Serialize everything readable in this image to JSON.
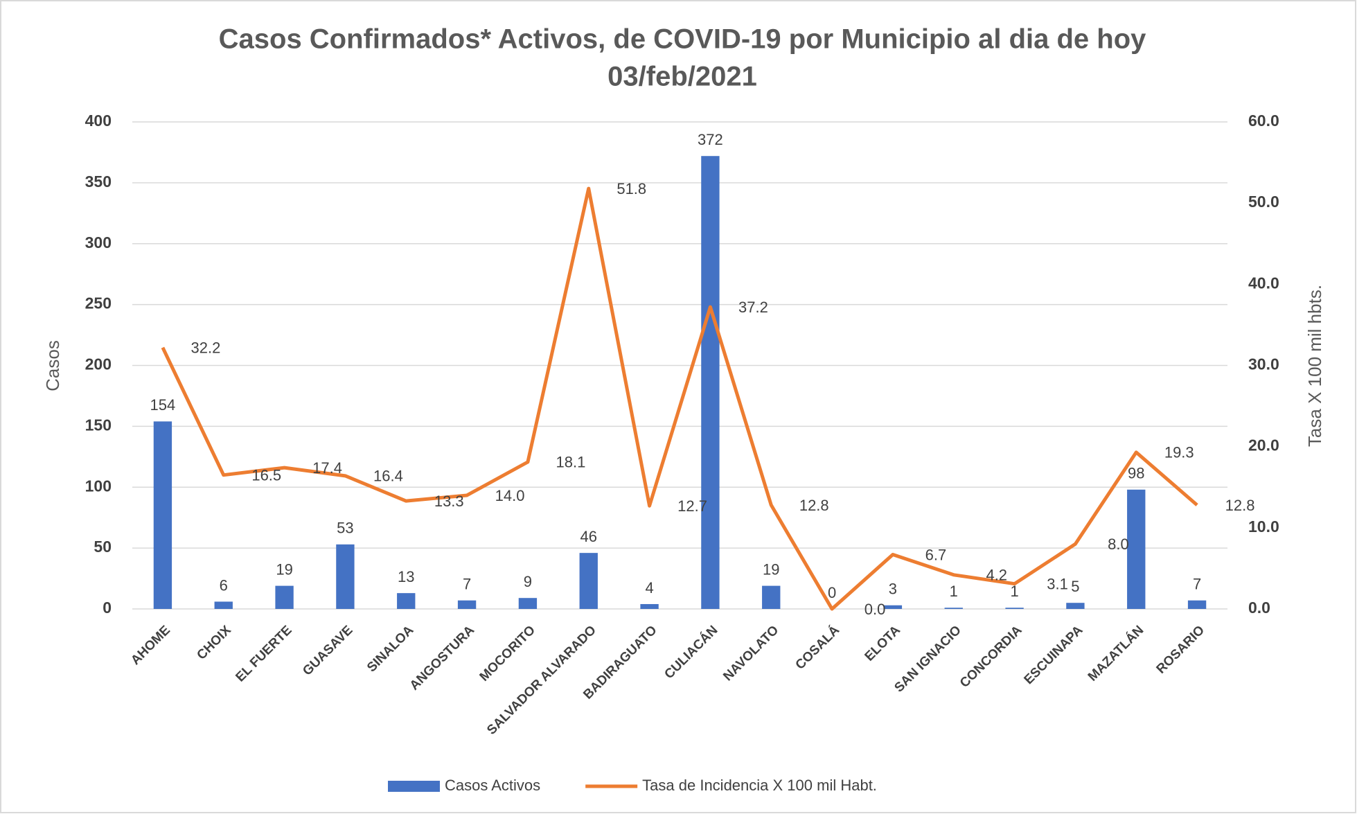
{
  "chart_data": {
    "type": "bar-line",
    "title": [
      "Casos Confirmados* Activos, de COVID-19 por Municipio al dia de hoy",
      "03/feb/2021"
    ],
    "y_label": "Casos",
    "y2_label": "Tasa X 100 mil hbts.",
    "categories": [
      "AHOME",
      "CHOIX",
      "EL FUERTE",
      "GUASAVE",
      "SINALOA",
      "ANGOSTURA",
      "MOCORITO",
      "SALVADOR ALVARADO",
      "BADIRAGUATO",
      "CULIACÁN",
      "NAVOLATO",
      "COSALÁ",
      "ELOTA",
      "SAN IGNACIO",
      "CONCORDIA",
      "ESCUINAPA",
      "MAZATLÁN",
      "ROSARIO"
    ],
    "series": [
      {
        "name": "Casos Activos",
        "type": "bar",
        "color": "#4472c4",
        "values": [
          154,
          6,
          19,
          53,
          13,
          7,
          9,
          46,
          4,
          372,
          19,
          0,
          3,
          1,
          1,
          5,
          98,
          7
        ]
      },
      {
        "name": "Tasa de Incidencia X 100 mil Habt.",
        "type": "line",
        "axis": "y2",
        "color": "#ed7d31",
        "values": [
          32.2,
          16.5,
          17.4,
          16.4,
          13.3,
          14,
          18.1,
          51.8,
          12.7,
          37.2,
          12.8,
          0,
          6.7,
          4.2,
          3.1,
          8,
          19.3,
          12.8
        ],
        "value_labels": [
          "32.2",
          "16.5",
          "17.4",
          "16.4",
          "13.3",
          "14.0",
          "18.1",
          "51.8",
          "12.7",
          "37.2",
          "12.8",
          "0.0",
          "6.7",
          "4.2",
          "3.1",
          "8.0",
          "19.3",
          "12.8"
        ]
      }
    ],
    "ylim": [
      0,
      400
    ],
    "yticks": [
      0,
      50,
      100,
      150,
      200,
      250,
      300,
      350,
      400
    ],
    "y2lim": [
      0,
      60
    ],
    "y2ticks": [
      {
        "value": 0,
        "label": "0.0"
      },
      {
        "value": 10,
        "label": "10.0"
      },
      {
        "value": 20,
        "label": "20.0"
      },
      {
        "value": 30,
        "label": "30.0"
      },
      {
        "value": 40,
        "label": "40.0"
      },
      {
        "value": 50,
        "label": "50.0"
      },
      {
        "value": 60,
        "label": "60.0"
      }
    ],
    "grid": true,
    "legend": "bottom"
  }
}
